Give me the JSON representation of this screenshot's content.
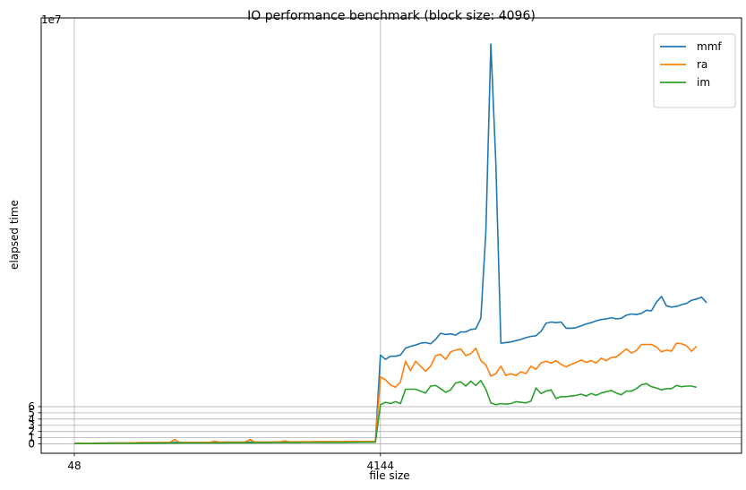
{
  "chart_data": {
    "type": "line",
    "title": "IO performance benchmark (block size: 4096)",
    "xlabel": "file size",
    "ylabel": "elapsed time",
    "y_scale_label": "1e7",
    "y_multiplier": 10000000,
    "x_tick_labels": [
      "48",
      "4144"
    ],
    "ylim": [
      -1.5,
      68.5
    ],
    "y_ticks": [
      0,
      1,
      2,
      3,
      4,
      5,
      6
    ],
    "grid": true,
    "legend_position": "top-right",
    "series": [
      {
        "name": "mmf",
        "color": "#1f77b4",
        "values": [
          0.1,
          0.11,
          0.12,
          0.12,
          0.13,
          0.13,
          0.13,
          0.14,
          0.14,
          0.14,
          0.15,
          0.16,
          0.18,
          0.2,
          0.21,
          0.22,
          0.22,
          0.22,
          0.23,
          0.23,
          0.24,
          0.24,
          0.24,
          0.25,
          0.25,
          0.26,
          0.26,
          0.26,
          0.27,
          0.27,
          0.28,
          0.28,
          0.28,
          0.29,
          0.29,
          0.29,
          0.3,
          0.3,
          0.3,
          0.3,
          0.31,
          0.31,
          0.31,
          0.32,
          0.32,
          0.32,
          0.33,
          0.33,
          0.33,
          0.34,
          0.34,
          0.34,
          0.35,
          0.35,
          0.35,
          0.36,
          0.36,
          0.37,
          0.37,
          0.37,
          0.38,
          14.3,
          13.6,
          14.1,
          14.1,
          14.3,
          15.4,
          15.7,
          15.9,
          16.2,
          16.3,
          16.1,
          16.8,
          17.8,
          17.6,
          17.7,
          17.5,
          18.0,
          18.0,
          18.4,
          18.5,
          20.2,
          34.0,
          64.3,
          45.0,
          16.2,
          16.3,
          16.4,
          16.6,
          16.8,
          17.1,
          17.3,
          17.4,
          18.1,
          19.4,
          19.6,
          19.5,
          19.6,
          18.6,
          18.6,
          18.7,
          19.0,
          19.3,
          19.5,
          19.8,
          20.0,
          20.1,
          20.3,
          20.1,
          20.2,
          20.7,
          20.9,
          20.8,
          21.0,
          21.5,
          21.4,
          22.8,
          23.7,
          22.2,
          22.0,
          22.1,
          22.4,
          22.6,
          23.1,
          23.3,
          23.6,
          22.7
        ]
      },
      {
        "name": "ra",
        "color": "#ff7f0e",
        "values": [
          0.1,
          0.11,
          0.11,
          0.12,
          0.12,
          0.13,
          0.13,
          0.14,
          0.14,
          0.15,
          0.15,
          0.17,
          0.19,
          0.22,
          0.22,
          0.23,
          0.24,
          0.23,
          0.24,
          0.25,
          0.7,
          0.25,
          0.24,
          0.25,
          0.26,
          0.25,
          0.26,
          0.27,
          0.45,
          0.27,
          0.28,
          0.29,
          0.28,
          0.29,
          0.3,
          0.7,
          0.3,
          0.31,
          0.32,
          0.31,
          0.33,
          0.34,
          0.5,
          0.33,
          0.35,
          0.34,
          0.36,
          0.35,
          0.4,
          0.36,
          0.38,
          0.37,
          0.39,
          0.38,
          0.4,
          0.39,
          0.41,
          0.4,
          0.42,
          0.41,
          0.43,
          10.8,
          10.3,
          9.5,
          9.1,
          10.0,
          13.3,
          11.8,
          13.3,
          12.5,
          11.7,
          12.5,
          14.2,
          14.4,
          13.6,
          14.8,
          15.1,
          15.3,
          14.2,
          14.5,
          15.4,
          13.4,
          12.7,
          10.9,
          11.3,
          12.5,
          11.0,
          11.3,
          11.0,
          11.6,
          11.3,
          12.5,
          12.0,
          13.0,
          13.3,
          13.0,
          13.4,
          12.8,
          12.4,
          12.8,
          13.1,
          13.5,
          13.1,
          13.4,
          13.0,
          13.8,
          13.4,
          13.9,
          14.0,
          14.6,
          15.3,
          14.6,
          15.0,
          16.0,
          16.0,
          16.0,
          15.6,
          14.8,
          15.1,
          14.9,
          16.2,
          16.1,
          15.8,
          14.9,
          15.7
        ]
      },
      {
        "name": "im",
        "color": "#2ca02c",
        "values": [
          0.05,
          0.05,
          0.06,
          0.06,
          0.06,
          0.07,
          0.07,
          0.07,
          0.08,
          0.08,
          0.08,
          0.09,
          0.1,
          0.11,
          0.12,
          0.12,
          0.13,
          0.13,
          0.13,
          0.14,
          0.14,
          0.14,
          0.15,
          0.15,
          0.15,
          0.16,
          0.16,
          0.16,
          0.17,
          0.17,
          0.17,
          0.18,
          0.18,
          0.18,
          0.19,
          0.19,
          0.19,
          0.2,
          0.2,
          0.2,
          0.21,
          0.21,
          0.21,
          0.22,
          0.22,
          0.22,
          0.23,
          0.23,
          0.23,
          0.24,
          0.24,
          0.24,
          0.25,
          0.25,
          0.25,
          0.26,
          0.26,
          0.27,
          0.27,
          0.27,
          0.28,
          6.3,
          6.7,
          6.5,
          6.8,
          6.5,
          8.8,
          8.8,
          8.8,
          8.5,
          8.2,
          9.3,
          9.4,
          8.9,
          8.3,
          8.7,
          9.8,
          10.0,
          9.3,
          10.1,
          9.4,
          10.2,
          8.8,
          6.6,
          6.3,
          6.5,
          6.4,
          6.5,
          6.8,
          6.7,
          6.6,
          6.9,
          9.0,
          8.1,
          8.5,
          8.7,
          7.3,
          7.6,
          7.6,
          7.7,
          7.8,
          8.0,
          7.7,
          8.1,
          7.8,
          8.2,
          8.4,
          8.6,
          8.2,
          7.9,
          8.5,
          8.5,
          8.9,
          9.5,
          9.7,
          9.2,
          9.0,
          8.7,
          8.9,
          8.9,
          9.4,
          9.2,
          9.3,
          9.3,
          9.1
        ]
      }
    ]
  }
}
